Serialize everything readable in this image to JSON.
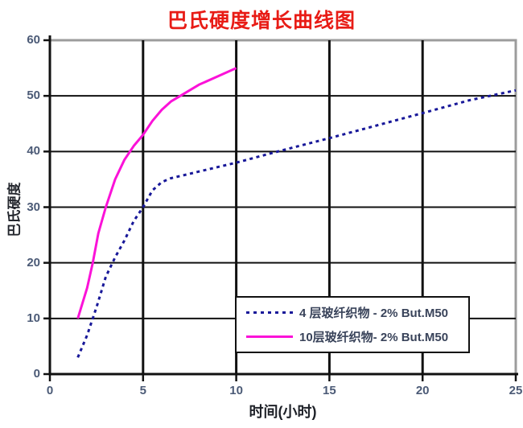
{
  "chart_data": {
    "type": "line",
    "title": "巴氏硬度增长曲线图",
    "xlabel": "时间(小时)",
    "ylabel": "巴氏硬度",
    "xlim": [
      0,
      25
    ],
    "ylim": [
      0,
      60
    ],
    "x_ticks": [
      0,
      5,
      10,
      15,
      20,
      25
    ],
    "y_ticks": [
      0,
      10,
      20,
      30,
      40,
      50,
      60
    ],
    "grid": true,
    "legend_position": "inside bottom-right",
    "colors": {
      "title": "#e81c16",
      "tick_label": "#4b5a76",
      "axis_label": "#20242e",
      "grid": "#111111",
      "plot_border": "#9c9c9c"
    },
    "series": [
      {
        "name": "4 层玻纤织物 - 2% But.M50",
        "style": "dotted",
        "color": "#181899",
        "points": [
          [
            1.5,
            3
          ],
          [
            2,
            7
          ],
          [
            2.5,
            12
          ],
          [
            3,
            17.5
          ],
          [
            3.5,
            21
          ],
          [
            4,
            24
          ],
          [
            4.5,
            27.5
          ],
          [
            5,
            30
          ],
          [
            5.5,
            33
          ],
          [
            6,
            34.5
          ],
          [
            6.5,
            35.2
          ],
          [
            7,
            35.6
          ],
          [
            8,
            36.4
          ],
          [
            9,
            37.2
          ],
          [
            10,
            38
          ],
          [
            12,
            39.8
          ],
          [
            15,
            42.4
          ],
          [
            17,
            44.2
          ],
          [
            20,
            46.9
          ],
          [
            22.5,
            49.2
          ],
          [
            25,
            51
          ]
        ]
      },
      {
        "name": "10层玻纤织物- 2% But.M50",
        "style": "solid",
        "color": "#fb12d8",
        "points": [
          [
            1.5,
            10
          ],
          [
            2,
            15.5
          ],
          [
            2.3,
            20
          ],
          [
            2.6,
            25.3
          ],
          [
            3,
            30
          ],
          [
            3.5,
            35
          ],
          [
            4,
            38.5
          ],
          [
            4.5,
            41
          ],
          [
            5,
            43
          ],
          [
            5.5,
            45.5
          ],
          [
            6,
            47.5
          ],
          [
            6.5,
            49
          ],
          [
            7,
            50
          ],
          [
            8,
            52
          ],
          [
            9,
            53.5
          ],
          [
            10,
            55
          ]
        ]
      }
    ]
  }
}
